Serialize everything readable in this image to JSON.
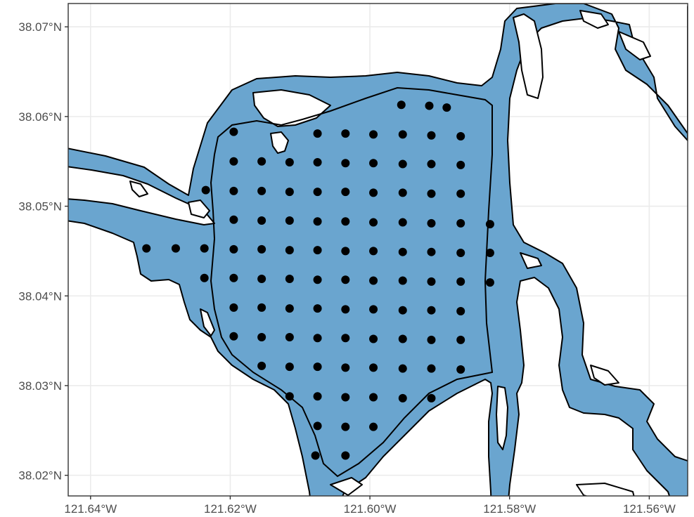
{
  "chart_data": {
    "type": "scatter",
    "title": "",
    "xlabel": "",
    "ylabel": "",
    "xlim": [
      -121.6432,
      -121.5545
    ],
    "ylim": [
      38.0177,
      38.0726
    ],
    "grid": true,
    "colors": {
      "water": "#6aa5cf",
      "points": "#000000",
      "land": "#ffffff",
      "grid": "#ebebeb"
    },
    "x_ticks": [
      {
        "value": -121.64,
        "label": "121.64°W"
      },
      {
        "value": -121.62,
        "label": "121.62°W"
      },
      {
        "value": -121.6,
        "label": "121.60°W"
      },
      {
        "value": -121.58,
        "label": "121.58°W"
      },
      {
        "value": -121.56,
        "label": "121.56°W"
      }
    ],
    "y_ticks": [
      {
        "value": 38.02,
        "label": "38.02°N"
      },
      {
        "value": 38.03,
        "label": "38.03°N"
      },
      {
        "value": 38.04,
        "label": "38.04°N"
      },
      {
        "value": 38.05,
        "label": "38.05°N"
      },
      {
        "value": 38.06,
        "label": "38.06°N"
      },
      {
        "value": 38.07,
        "label": "38.07°N"
      }
    ],
    "points": [
      {
        "lon": -121.5955,
        "lat": 38.0613
      },
      {
        "lon": -121.5915,
        "lat": 38.0612
      },
      {
        "lon": -121.589,
        "lat": 38.061
      },
      {
        "lon": -121.6195,
        "lat": 38.0583
      },
      {
        "lon": -121.6075,
        "lat": 38.0581
      },
      {
        "lon": -121.6035,
        "lat": 38.0581
      },
      {
        "lon": -121.5995,
        "lat": 38.058
      },
      {
        "lon": -121.5953,
        "lat": 38.058
      },
      {
        "lon": -121.5912,
        "lat": 38.0579
      },
      {
        "lon": -121.587,
        "lat": 38.0578
      },
      {
        "lon": -121.6195,
        "lat": 38.055
      },
      {
        "lon": -121.6155,
        "lat": 38.055
      },
      {
        "lon": -121.6115,
        "lat": 38.0549
      },
      {
        "lon": -121.6075,
        "lat": 38.0549
      },
      {
        "lon": -121.6035,
        "lat": 38.0548
      },
      {
        "lon": -121.5995,
        "lat": 38.0548
      },
      {
        "lon": -121.5953,
        "lat": 38.0547
      },
      {
        "lon": -121.5912,
        "lat": 38.0547
      },
      {
        "lon": -121.587,
        "lat": 38.0546
      },
      {
        "lon": -121.6235,
        "lat": 38.0518
      },
      {
        "lon": -121.6195,
        "lat": 38.0517
      },
      {
        "lon": -121.6155,
        "lat": 38.0517
      },
      {
        "lon": -121.6115,
        "lat": 38.0516
      },
      {
        "lon": -121.6075,
        "lat": 38.0516
      },
      {
        "lon": -121.6035,
        "lat": 38.0516
      },
      {
        "lon": -121.5995,
        "lat": 38.0515
      },
      {
        "lon": -121.5953,
        "lat": 38.0515
      },
      {
        "lon": -121.5912,
        "lat": 38.0514
      },
      {
        "lon": -121.587,
        "lat": 38.0514
      },
      {
        "lon": -121.6195,
        "lat": 38.0485
      },
      {
        "lon": -121.6155,
        "lat": 38.0484
      },
      {
        "lon": -121.6115,
        "lat": 38.0484
      },
      {
        "lon": -121.6075,
        "lat": 38.0483
      },
      {
        "lon": -121.6035,
        "lat": 38.0483
      },
      {
        "lon": -121.5995,
        "lat": 38.0482
      },
      {
        "lon": -121.5953,
        "lat": 38.0482
      },
      {
        "lon": -121.5912,
        "lat": 38.0481
      },
      {
        "lon": -121.587,
        "lat": 38.0481
      },
      {
        "lon": -121.5828,
        "lat": 38.048
      },
      {
        "lon": -121.632,
        "lat": 38.0453
      },
      {
        "lon": -121.6278,
        "lat": 38.0453
      },
      {
        "lon": -121.6237,
        "lat": 38.0453
      },
      {
        "lon": -121.6195,
        "lat": 38.0452
      },
      {
        "lon": -121.6155,
        "lat": 38.0452
      },
      {
        "lon": -121.6115,
        "lat": 38.0451
      },
      {
        "lon": -121.6075,
        "lat": 38.0451
      },
      {
        "lon": -121.6035,
        "lat": 38.045
      },
      {
        "lon": -121.5995,
        "lat": 38.045
      },
      {
        "lon": -121.5953,
        "lat": 38.0449
      },
      {
        "lon": -121.5912,
        "lat": 38.0449
      },
      {
        "lon": -121.587,
        "lat": 38.0448
      },
      {
        "lon": -121.5828,
        "lat": 38.0448
      },
      {
        "lon": -121.6237,
        "lat": 38.042
      },
      {
        "lon": -121.6195,
        "lat": 38.042
      },
      {
        "lon": -121.6155,
        "lat": 38.0419
      },
      {
        "lon": -121.6115,
        "lat": 38.0419
      },
      {
        "lon": -121.6075,
        "lat": 38.0418
      },
      {
        "lon": -121.6035,
        "lat": 38.0418
      },
      {
        "lon": -121.5995,
        "lat": 38.0417
      },
      {
        "lon": -121.5953,
        "lat": 38.0417
      },
      {
        "lon": -121.5912,
        "lat": 38.0416
      },
      {
        "lon": -121.587,
        "lat": 38.0416
      },
      {
        "lon": -121.5828,
        "lat": 38.0415
      },
      {
        "lon": -121.6195,
        "lat": 38.0387
      },
      {
        "lon": -121.6155,
        "lat": 38.0387
      },
      {
        "lon": -121.6115,
        "lat": 38.0386
      },
      {
        "lon": -121.6075,
        "lat": 38.0386
      },
      {
        "lon": -121.6035,
        "lat": 38.0385
      },
      {
        "lon": -121.5995,
        "lat": 38.0385
      },
      {
        "lon": -121.5953,
        "lat": 38.0384
      },
      {
        "lon": -121.5912,
        "lat": 38.0384
      },
      {
        "lon": -121.587,
        "lat": 38.0383
      },
      {
        "lon": -121.6195,
        "lat": 38.0355
      },
      {
        "lon": -121.6155,
        "lat": 38.0354
      },
      {
        "lon": -121.6115,
        "lat": 38.0354
      },
      {
        "lon": -121.6075,
        "lat": 38.0353
      },
      {
        "lon": -121.6035,
        "lat": 38.0353
      },
      {
        "lon": -121.5995,
        "lat": 38.0352
      },
      {
        "lon": -121.5953,
        "lat": 38.0352
      },
      {
        "lon": -121.5912,
        "lat": 38.0351
      },
      {
        "lon": -121.587,
        "lat": 38.0351
      },
      {
        "lon": -121.6155,
        "lat": 38.0322
      },
      {
        "lon": -121.6115,
        "lat": 38.0321
      },
      {
        "lon": -121.6075,
        "lat": 38.0321
      },
      {
        "lon": -121.6035,
        "lat": 38.032
      },
      {
        "lon": -121.5995,
        "lat": 38.032
      },
      {
        "lon": -121.5953,
        "lat": 38.0319
      },
      {
        "lon": -121.5912,
        "lat": 38.0319
      },
      {
        "lon": -121.587,
        "lat": 38.0318
      },
      {
        "lon": -121.6115,
        "lat": 38.0288
      },
      {
        "lon": -121.6075,
        "lat": 38.0288
      },
      {
        "lon": -121.6035,
        "lat": 38.0287
      },
      {
        "lon": -121.5995,
        "lat": 38.0287
      },
      {
        "lon": -121.5953,
        "lat": 38.0286
      },
      {
        "lon": -121.5912,
        "lat": 38.0286
      },
      {
        "lon": -121.6075,
        "lat": 38.0255
      },
      {
        "lon": -121.6035,
        "lat": 38.0254
      },
      {
        "lon": -121.5995,
        "lat": 38.0254
      },
      {
        "lon": -121.6078,
        "lat": 38.0222
      },
      {
        "lon": -121.6035,
        "lat": 38.0222
      }
    ]
  }
}
